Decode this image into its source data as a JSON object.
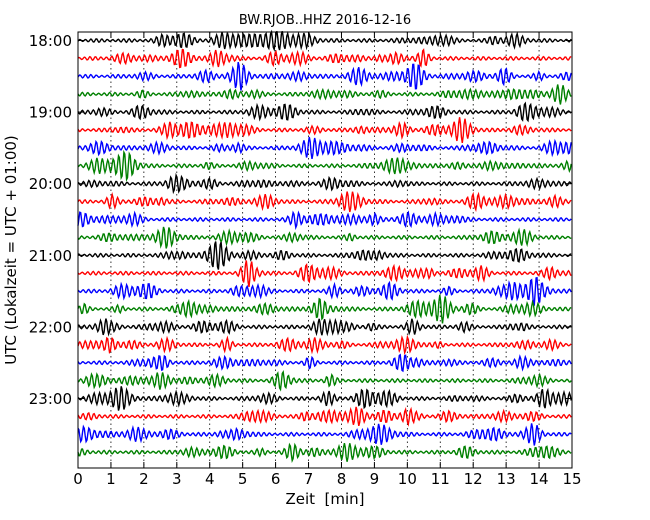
{
  "chart_data": {
    "type": "line",
    "title": "BW.RJOB..HHZ 2016-12-16",
    "xlabel": "Zeit  [min]",
    "ylabel": "UTC (Lokalzeit = UTC + 01:00)",
    "xlim": [
      0,
      15
    ],
    "x_ticks": [
      "0",
      "1",
      "2",
      "3",
      "4",
      "5",
      "6",
      "7",
      "8",
      "9",
      "10",
      "11",
      "12",
      "13",
      "14",
      "15"
    ],
    "y_tick_labels": [
      "18:00",
      "19:00",
      "20:00",
      "21:00",
      "22:00",
      "23:00"
    ],
    "grid": "vertical dotted",
    "trace_count": 24,
    "trace_colors": [
      "#000000",
      "#ff0000",
      "#0000ff",
      "#008000"
    ],
    "trace_minutes": 15
  }
}
